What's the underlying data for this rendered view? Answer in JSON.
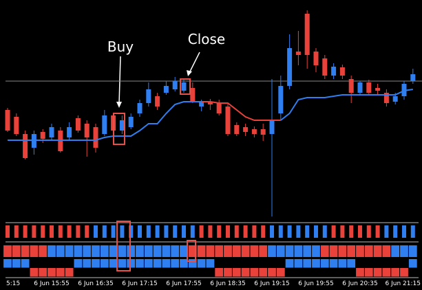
{
  "chart_data": {
    "type": "candlestick",
    "categories": [
      "5:15",
      null,
      null,
      null,
      null,
      "6 Jun 15:55",
      null,
      null,
      null,
      null,
      "6 Jun 16:35",
      null,
      null,
      null,
      null,
      "6 Jun 17:15",
      null,
      null,
      null,
      null,
      "6 Jun 17:55",
      null,
      null,
      null,
      null,
      "6 Jun 18:35",
      null,
      null,
      null,
      null,
      "6 Jun 19:15",
      null,
      null,
      null,
      null,
      "6 Jun 19:55",
      null,
      null,
      null,
      null,
      "6 Jun 20:35",
      null,
      null,
      null,
      null,
      "6 Jun 21:15",
      null
    ],
    "open": [
      160,
      150,
      125,
      105,
      128,
      120,
      130,
      120,
      148,
      140,
      135,
      125,
      152,
      130,
      135,
      155,
      170,
      180,
      185,
      190,
      188,
      192,
      165,
      172,
      170,
      165,
      138,
      135,
      132,
      132,
      125,
      155,
      195,
      245,
      300,
      245,
      235,
      210,
      222,
      205,
      185,
      200,
      192,
      185,
      172,
      180,
      202
    ],
    "high": [
      163,
      155,
      130,
      130,
      132,
      140,
      135,
      142,
      152,
      145,
      140,
      160,
      155,
      152,
      155,
      175,
      200,
      185,
      202,
      208,
      205,
      200,
      175,
      176,
      175,
      170,
      142,
      140,
      136,
      140,
      205,
      210,
      270,
      275,
      305,
      250,
      240,
      228,
      226,
      210,
      202,
      204,
      198,
      190,
      185,
      202,
      220
    ],
    "low": [
      128,
      122,
      88,
      95,
      112,
      115,
      98,
      115,
      127,
      92,
      98,
      122,
      125,
      125,
      132,
      150,
      165,
      160,
      182,
      187,
      185,
      170,
      158,
      160,
      152,
      122,
      122,
      122,
      120,
      115,
      5,
      145,
      190,
      225,
      220,
      215,
      205,
      205,
      205,
      170,
      182,
      182,
      182,
      165,
      168,
      175,
      198
    ],
    "close": [
      130,
      125,
      90,
      125,
      118,
      135,
      100,
      135,
      130,
      120,
      105,
      152,
      130,
      145,
      150,
      170,
      190,
      165,
      195,
      202,
      200,
      172,
      172,
      168,
      155,
      125,
      125,
      128,
      125,
      124,
      145,
      195,
      250,
      240,
      240,
      225,
      210,
      223,
      210,
      185,
      200,
      185,
      188,
      170,
      180,
      198,
      212
    ],
    "up_color": "#2f7ff0",
    "down_color": "#e8423b",
    "series": [
      {
        "color": "#2f7ff0",
        "values": [
          116,
          116,
          116,
          116,
          116,
          116,
          116,
          116,
          116,
          116,
          116,
          120,
          122,
          122,
          122,
          130,
          140,
          140,
          155,
          168,
          172,
          172,
          172,
          null,
          null,
          null,
          null,
          null,
          null,
          null,
          null,
          145,
          155,
          175,
          178,
          178,
          178,
          180,
          182,
          182,
          182,
          182,
          182,
          182,
          182,
          188,
          190
        ]
      },
      {
        "color": "#e8423b",
        "values": [
          null,
          null,
          null,
          null,
          null,
          null,
          null,
          null,
          null,
          null,
          null,
          null,
          null,
          null,
          null,
          null,
          null,
          null,
          null,
          null,
          null,
          null,
          172,
          172,
          170,
          170,
          160,
          150,
          145,
          145,
          145,
          145,
          null,
          null,
          null,
          null,
          null,
          null,
          null,
          null,
          null,
          null,
          null,
          null,
          null,
          null,
          null
        ]
      }
    ],
    "hline": 202,
    "hline_color": "#8a8a8a",
    "ylim": [
      0,
      320
    ],
    "annotations": [
      {
        "text": "Buy"
      },
      {
        "text": "Close"
      }
    ],
    "indicator_rows": [
      [
        -1,
        -1,
        -1,
        -1,
        -1,
        -1,
        -1,
        -1,
        -1,
        -1,
        1,
        1,
        1,
        1,
        1,
        1,
        1,
        1,
        1,
        1,
        1,
        1,
        -1,
        -1,
        -1,
        -1,
        -1,
        -1,
        -1,
        -1,
        1,
        1,
        1,
        1,
        1,
        1,
        1,
        -1,
        -1,
        -1,
        -1,
        -1,
        -1,
        1,
        1,
        1,
        1
      ],
      [
        -1,
        -1,
        -1,
        -1,
        -1,
        1,
        1,
        1,
        1,
        1,
        1,
        1,
        1,
        1,
        1,
        1,
        1,
        1,
        1,
        1,
        1,
        -1,
        -1,
        -1,
        -1,
        -1,
        -1,
        -1,
        -1,
        -1,
        1,
        1,
        1,
        1,
        1,
        1,
        -1,
        -1,
        -1,
        -1,
        -1,
        -1,
        -1,
        -1,
        1,
        1,
        1
      ],
      [
        1,
        1,
        1,
        -1,
        -1,
        -1,
        -1,
        -1,
        1,
        1,
        1,
        1,
        1,
        1,
        1,
        1,
        1,
        1,
        1,
        1,
        1,
        1,
        1,
        1,
        -1,
        -1,
        -1,
        -1,
        -1,
        -1,
        -1,
        -1,
        1,
        1,
        1,
        1,
        1,
        1,
        1,
        1,
        -1,
        -1,
        -1,
        -1,
        -1,
        -1,
        1
      ]
    ]
  }
}
